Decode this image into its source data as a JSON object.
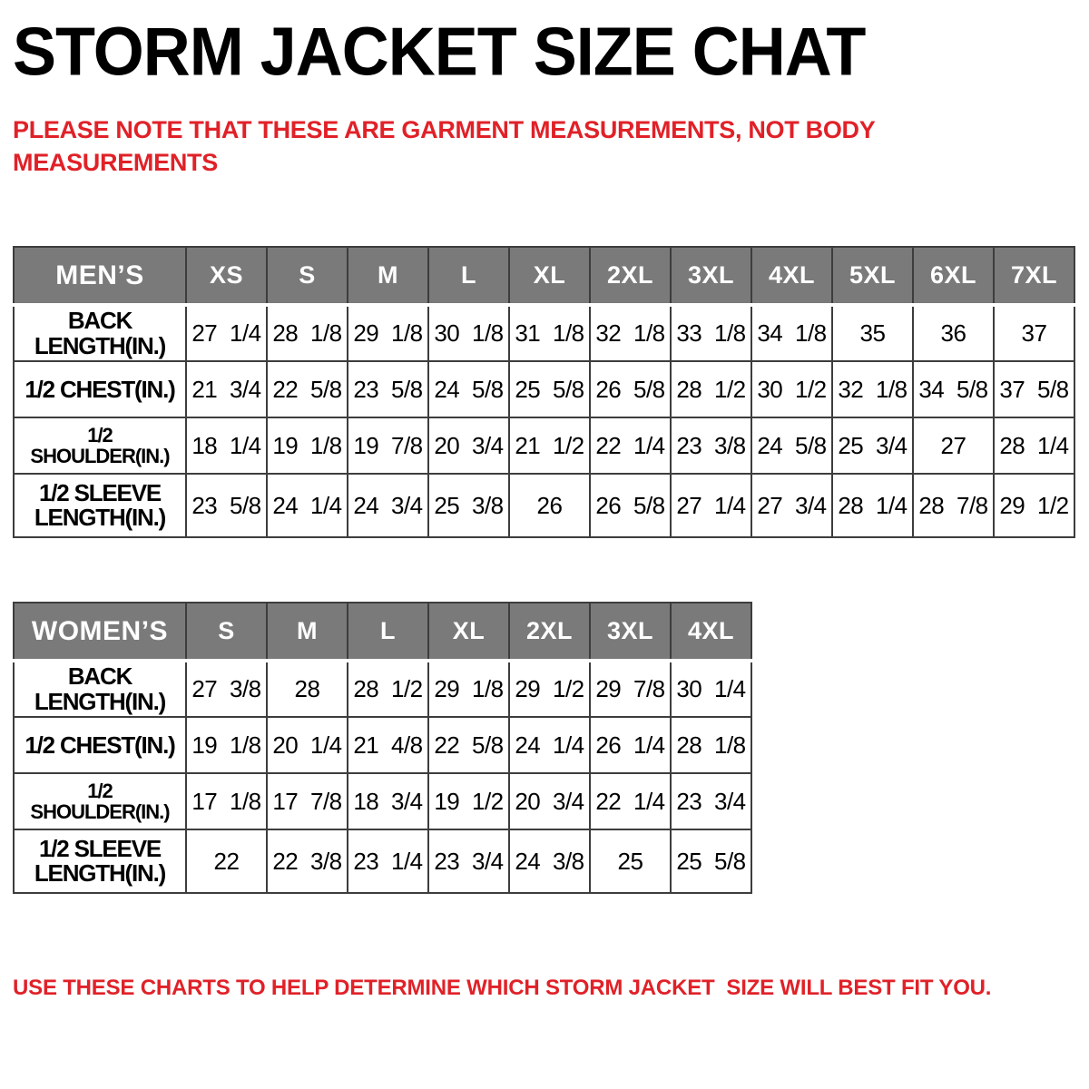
{
  "title": "STORM JACKET SIZE CHAT",
  "note": "PLEASE NOTE THAT THESE ARE GARMENT MEASUREMENTS, NOT BODY MEASUREMENTS",
  "footer": "USE THESE CHARTS TO HELP DETERMINE WHICH STORM JACKET  SIZE WILL BEST FIT YOU.",
  "colors": {
    "accent_red": "#e02128",
    "header_gray": "#7a7a7a",
    "border": "#3d3d3d"
  },
  "mens_table": {
    "header": [
      "MEN’S",
      "XS",
      "S",
      "M",
      "L",
      "XL",
      "2XL",
      "3XL",
      "4XL",
      "5XL",
      "6XL",
      "7XL"
    ],
    "rows": [
      {
        "label": "BACK LENGTH(IN.)",
        "label_lines": [
          "BACK",
          "LENGTH(IN.)"
        ],
        "values": [
          "27 1/4",
          "28 1/8",
          "29 1/8",
          "30 1/8",
          "31 1/8",
          "32 1/8",
          "33 1/8",
          "34 1/8",
          "35",
          "36",
          "37"
        ]
      },
      {
        "label": "1/2 CHEST(IN.)",
        "label_lines": [
          "1/2 CHEST(IN.)"
        ],
        "values": [
          "21 3/4",
          "22 5/8",
          "23 5/8",
          "24 5/8",
          "25 5/8",
          "26 5/8",
          "28 1/2",
          "30 1/2",
          "32 1/8",
          "34 5/8",
          "37 5/8"
        ]
      },
      {
        "label": "1/2 SHOULDER(IN.)",
        "label_lines": [
          "1/2 SHOULDER(IN.)"
        ],
        "values": [
          "18 1/4",
          "19 1/8",
          "19 7/8",
          "20 3/4",
          "21 1/2",
          "22 1/4",
          "23 3/8",
          "24 5/8",
          "25 3/4",
          "27",
          "28 1/4"
        ]
      },
      {
        "label": "1/2 SLEEVE LENGTH(IN.)",
        "label_lines": [
          "1/2 SLEEVE",
          "LENGTH(IN.)"
        ],
        "values": [
          "23 5/8",
          "24 1/4",
          "24 3/4",
          "25 3/8",
          "26",
          "26 5/8",
          "27 1/4",
          "27 3/4",
          "28 1/4",
          "28 7/8",
          "29 1/2"
        ]
      }
    ]
  },
  "womens_table": {
    "header": [
      "WOMEN’S",
      "S",
      "M",
      "L",
      "XL",
      "2XL",
      "3XL",
      "4XL"
    ],
    "rows": [
      {
        "label": "BACK LENGTH(IN.)",
        "label_lines": [
          "BACK",
          "LENGTH(IN.)"
        ],
        "values": [
          "27 3/8",
          "28",
          "28 1/2",
          "29 1/8",
          "29 1/2",
          "29 7/8",
          "30 1/4"
        ]
      },
      {
        "label": "1/2 CHEST(IN.)",
        "label_lines": [
          "1/2 CHEST(IN.)"
        ],
        "values": [
          "19 1/8",
          "20 1/4",
          "21 4/8",
          "22 5/8",
          "24 1/4",
          "26 1/4",
          "28 1/8"
        ]
      },
      {
        "label": "1/2 SHOULDER(IN.)",
        "label_lines": [
          "1/2 SHOULDER(IN.)"
        ],
        "values": [
          "17 1/8",
          "17 7/8",
          "18 3/4",
          "19 1/2",
          "20 3/4",
          "22 1/4",
          "23 3/4"
        ]
      },
      {
        "label": "1/2 SLEEVE LENGTH(IN.)",
        "label_lines": [
          "1/2 SLEEVE",
          "LENGTH(IN.)"
        ],
        "values": [
          "22",
          "22 3/8",
          "23 1/4",
          "23 3/4",
          "24 3/8",
          "25",
          "25 5/8"
        ]
      }
    ]
  },
  "layout": {
    "label_col_width": 190,
    "size_col_width": 89
  }
}
